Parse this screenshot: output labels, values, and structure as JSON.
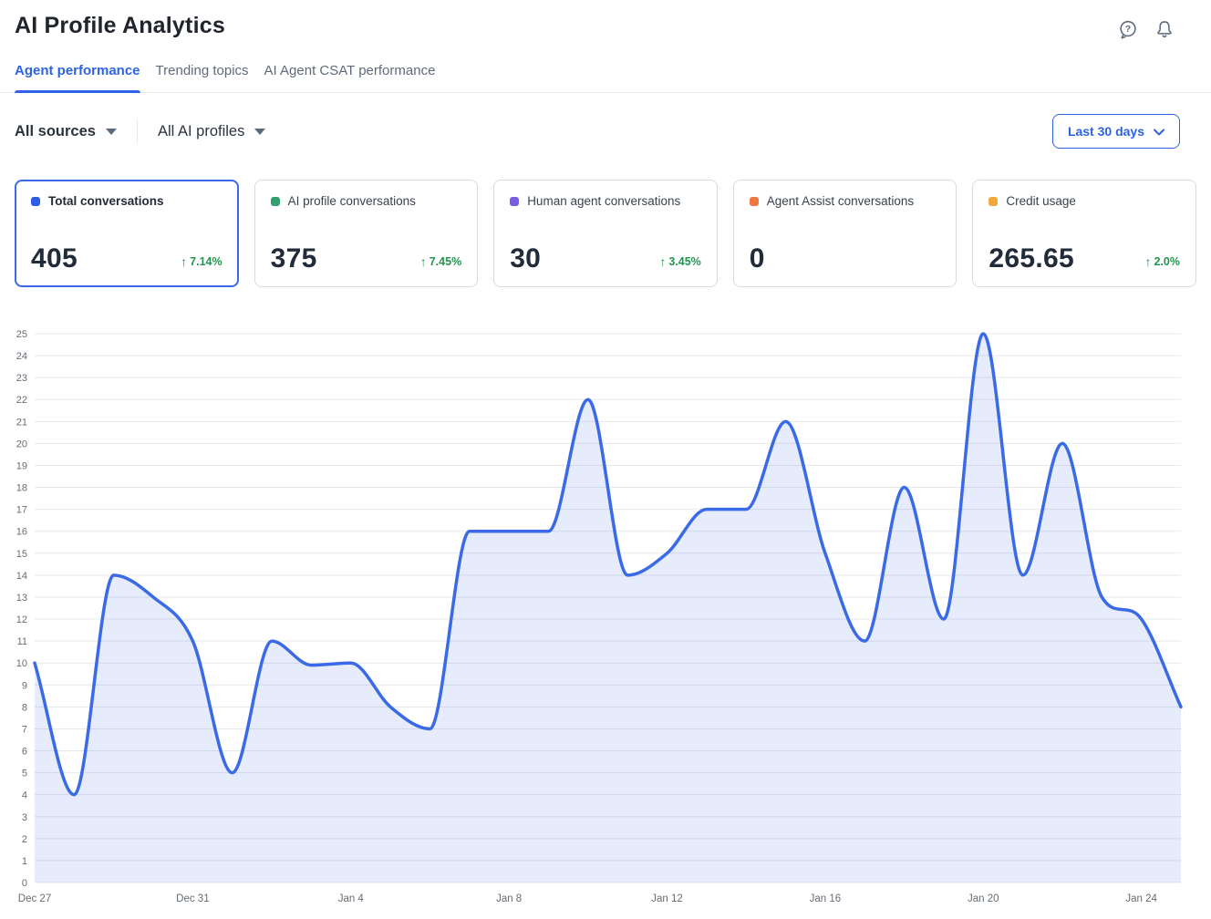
{
  "header": {
    "title": "AI Profile Analytics",
    "icons": [
      "help-icon",
      "bell-icon"
    ]
  },
  "tabs": [
    {
      "label": "Agent performance",
      "active": true
    },
    {
      "label": "Trending topics",
      "active": false
    },
    {
      "label": "AI Agent CSAT performance",
      "active": false
    }
  ],
  "filters": {
    "source": "All sources",
    "profile": "All AI profiles",
    "date_range": "Last 30 days"
  },
  "cards": [
    {
      "label": "Total conversations",
      "value": "405",
      "change": "7.14%",
      "dot_color": "#2e5ce6",
      "selected": true
    },
    {
      "label": "AI profile conversations",
      "value": "375",
      "change": "7.45%",
      "dot_color": "#34a06e",
      "selected": false
    },
    {
      "label": "Human agent conversations",
      "value": "30",
      "change": "3.45%",
      "dot_color": "#7a5ce0",
      "selected": false
    },
    {
      "label": "Agent Assist conversations",
      "value": "0",
      "change": null,
      "dot_color": "#ee7743",
      "selected": false
    },
    {
      "label": "Credit usage",
      "value": "265.65",
      "change": "2.0%",
      "dot_color": "#f2a73b",
      "selected": false
    }
  ],
  "chart_data": {
    "type": "area",
    "series_name": "Total conversations",
    "x": [
      "Dec 27",
      "Dec 28",
      "Dec 29",
      "Dec 30",
      "Dec 31",
      "Jan 1",
      "Jan 2",
      "Jan 3",
      "Jan 4",
      "Jan 5",
      "Jan 6",
      "Jan 7",
      "Jan 8",
      "Jan 9",
      "Jan 10",
      "Jan 11",
      "Jan 12",
      "Jan 13",
      "Jan 14",
      "Jan 15",
      "Jan 16",
      "Jan 17",
      "Jan 18",
      "Jan 19",
      "Jan 20",
      "Jan 21",
      "Jan 22",
      "Jan 23",
      "Jan 24",
      "Jan 25"
    ],
    "values": [
      10,
      4,
      14,
      13,
      11,
      5,
      11,
      9.9,
      10,
      8,
      7,
      16,
      16,
      16,
      22,
      14,
      15,
      17,
      17,
      21,
      15,
      11,
      18,
      12,
      25,
      14,
      20,
      13,
      12,
      8
    ],
    "x_tick_labels": [
      "Dec 27",
      "Dec 31",
      "Jan 4",
      "Jan 8",
      "Jan 12",
      "Jan 16",
      "Jan 20",
      "Jan 24"
    ],
    "x_tick_every": 4,
    "ylim": [
      0,
      25
    ],
    "y_tick_step": 1,
    "grid": "horizontal",
    "legend": "none",
    "line_color": "#3a6ae6",
    "fill_color": "rgba(58,106,230,0.13)",
    "axis_label_color": "#666c74"
  },
  "colors": {
    "accent_blue": "#2d63e2",
    "positive_green": "#23954f",
    "inactive_gray": "#5f6b7a",
    "card_border": "#d6dce4",
    "gridline": "#e7e8ea"
  }
}
